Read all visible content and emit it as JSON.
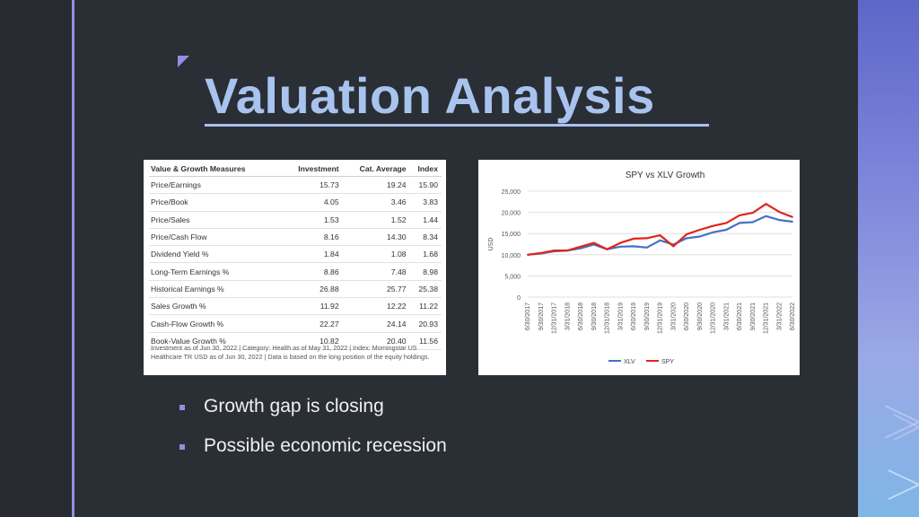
{
  "slide": {
    "title": "Valuation Analysis",
    "accent_color": "#8f92e0",
    "title_color": "#a9c3ef",
    "background_color": "#2a2e35"
  },
  "valuation_table": {
    "headers": [
      "Value & Growth Measures",
      "Investment",
      "Cat. Average",
      "Index"
    ],
    "rows": [
      [
        "Price/Earnings",
        "15.73",
        "19.24",
        "15.90"
      ],
      [
        "Price/Book",
        "4.05",
        "3.46",
        "3.83"
      ],
      [
        "Price/Sales",
        "1.53",
        "1.52",
        "1.44"
      ],
      [
        "Price/Cash Flow",
        "8.16",
        "14.30",
        "8.34"
      ],
      [
        "Dividend Yield %",
        "1.84",
        "1.08",
        "1.68"
      ],
      [
        "Long-Term Earnings %",
        "8.86",
        "7.48",
        "8.98"
      ],
      [
        "Historical Earnings %",
        "26.88",
        "25.77",
        "25.38"
      ],
      [
        "Sales Growth %",
        "11.92",
        "12.22",
        "11.22"
      ],
      [
        "Cash-Flow Growth %",
        "22.27",
        "24.14",
        "20.93"
      ],
      [
        "Book-Value Growth %",
        "10.82",
        "20.40",
        "11.56"
      ]
    ],
    "footnote": "Investment as of Jun 30, 2022 | Category: Health as of May 31, 2022 | Index: Morningstar US Healthcare TR USD as of Jun 30, 2022 | Data is based on the long position of the equity holdings."
  },
  "chart_data": {
    "type": "line",
    "title": "SPY vs XLV Growth",
    "ylabel": "USD",
    "ylim": [
      0,
      25000
    ],
    "yticks": [
      "0",
      "5,000",
      "10,000",
      "15,000",
      "20,000",
      "25,000"
    ],
    "grid": true,
    "legend_position": "bottom",
    "categories": [
      "6/30/2017",
      "9/30/2017",
      "12/31/2017",
      "3/31/2018",
      "6/30/2018",
      "9/30/2018",
      "12/31/2018",
      "3/31/2019",
      "6/30/2019",
      "9/30/2019",
      "12/31/2019",
      "3/31/2020",
      "6/30/2020",
      "9/30/2020",
      "12/31/2020",
      "3/31/2021",
      "6/30/2021",
      "9/30/2021",
      "12/31/2021",
      "3/31/2022",
      "6/30/2022"
    ],
    "series": [
      {
        "name": "XLV",
        "color": "#4472c4",
        "values": [
          10000,
          10300,
          10800,
          11000,
          11500,
          12400,
          11300,
          11900,
          12000,
          11700,
          13400,
          12400,
          13900,
          14300,
          15300,
          15900,
          17500,
          17700,
          19100,
          18200,
          17800
        ]
      },
      {
        "name": "SPY",
        "color": "#e0241c",
        "values": [
          10000,
          10400,
          11000,
          11000,
          11900,
          12800,
          11300,
          12800,
          13800,
          13900,
          14600,
          12000,
          14800,
          15900,
          16800,
          17500,
          19300,
          19900,
          22000,
          20100,
          18900
        ]
      }
    ]
  },
  "bullets": [
    "Growth gap is closing",
    "Possible economic recession"
  ]
}
